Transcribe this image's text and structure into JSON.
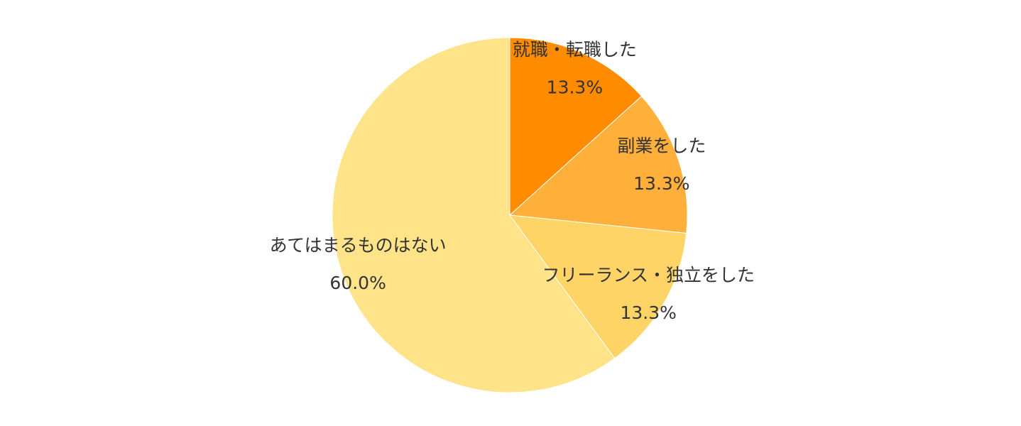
{
  "chart_data": {
    "type": "pie",
    "categories": [
      "就職・転職した",
      "副業をした",
      "フリーランス・独立をした",
      "あてはまるものはない"
    ],
    "values": [
      13.3,
      13.3,
      13.3,
      60.0
    ],
    "value_labels": [
      "13.3%",
      "13.3%",
      "13.3%",
      "60.0%"
    ],
    "colors": [
      "#ff8c00",
      "#ffb03b",
      "#ffd466",
      "#ffe388"
    ]
  }
}
